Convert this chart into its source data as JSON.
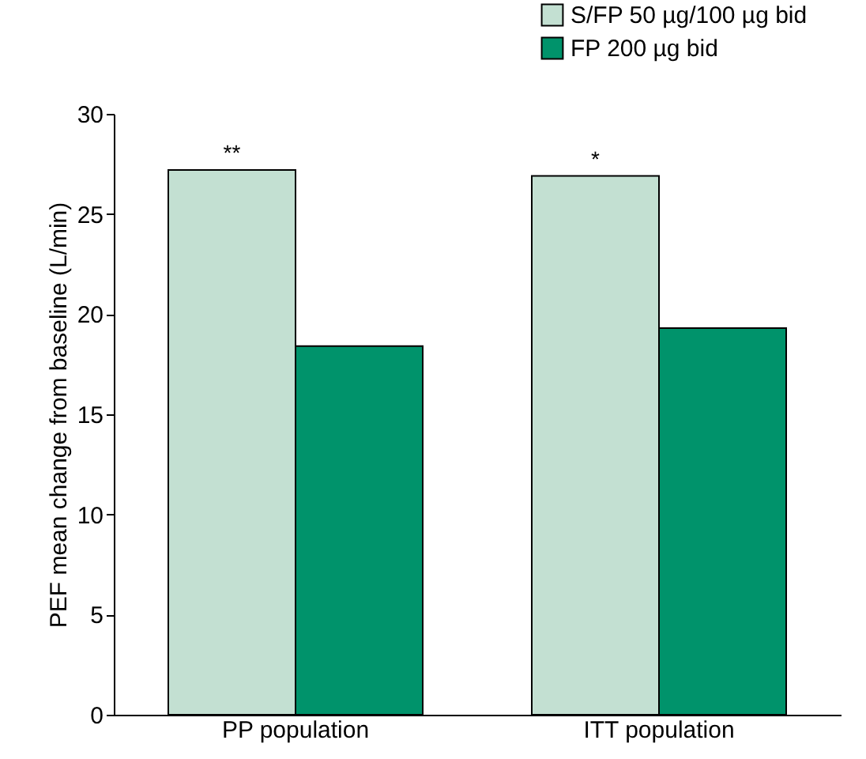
{
  "chart_data": {
    "type": "bar",
    "categories": [
      "PP population",
      "ITT population"
    ],
    "series": [
      {
        "name": "S/FP 50 µg/100 µg bid",
        "color": "#c3e0d2",
        "values": [
          27.2,
          26.9
        ]
      },
      {
        "name": "FP 200 µg bid",
        "color": "#00936b",
        "values": [
          18.4,
          19.3
        ]
      }
    ],
    "ylabel": "PEF mean change from baseline (L/min)",
    "ylim": [
      0,
      30
    ],
    "yticks": [
      0,
      5,
      10,
      15,
      20,
      25,
      30
    ],
    "annotations": [
      {
        "text": "**",
        "x": "PP population",
        "y": 27.2
      },
      {
        "text": "*",
        "x": "ITT population",
        "y": 26.9
      }
    ],
    "grid": false,
    "legend": "top right"
  }
}
